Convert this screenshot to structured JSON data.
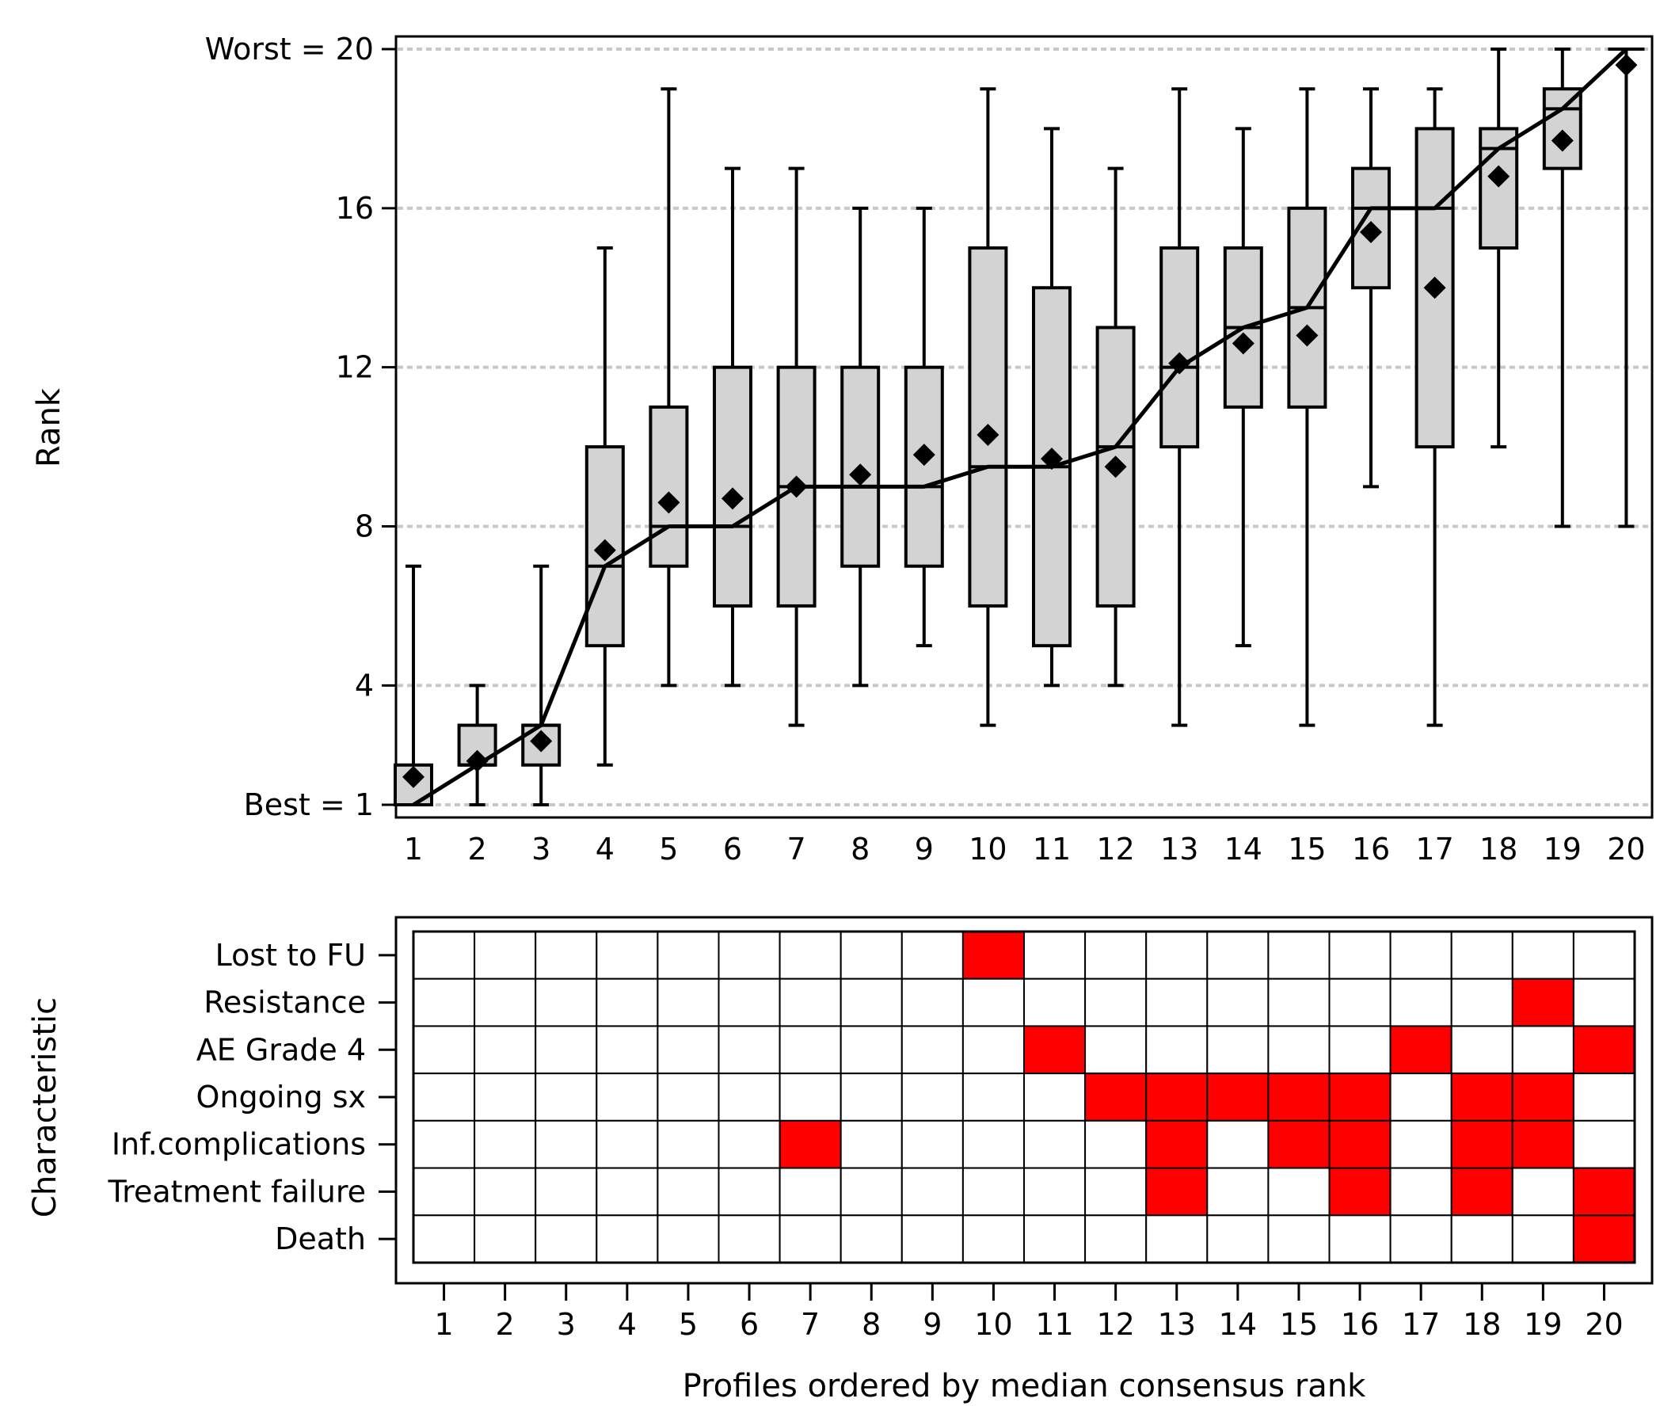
{
  "chart_data": [
    {
      "type": "box",
      "ylabel": "Rank",
      "ylim": [
        1,
        20
      ],
      "y_ticks": [
        {
          "value": 1,
          "label": "Best = 1"
        },
        {
          "value": 4,
          "label": "4"
        },
        {
          "value": 8,
          "label": "8"
        },
        {
          "value": 12,
          "label": "12"
        },
        {
          "value": 16,
          "label": "16"
        },
        {
          "value": 20,
          "label": "Worst = 20"
        }
      ],
      "categories": [
        "1",
        "2",
        "3",
        "4",
        "5",
        "6",
        "7",
        "8",
        "9",
        "10",
        "11",
        "12",
        "13",
        "14",
        "15",
        "16",
        "17",
        "18",
        "19",
        "20"
      ],
      "grid": "horizontal dashed",
      "box_fill": "#d3d3d3",
      "mean_marker": "diamond",
      "median_line": "connected",
      "boxes": [
        {
          "min": 1,
          "q1": 1,
          "median": 1,
          "q3": 2,
          "max": 7,
          "mean": 1.7
        },
        {
          "min": 1,
          "q1": 2,
          "median": 2,
          "q3": 3,
          "max": 4,
          "mean": 2.1
        },
        {
          "min": 1,
          "q1": 2,
          "median": 3,
          "q3": 3,
          "max": 7,
          "mean": 2.6
        },
        {
          "min": 2,
          "q1": 5,
          "median": 7,
          "q3": 10,
          "max": 15,
          "mean": 7.4
        },
        {
          "min": 4,
          "q1": 7,
          "median": 8,
          "q3": 11,
          "max": 19,
          "mean": 8.6
        },
        {
          "min": 4,
          "q1": 6,
          "median": 8,
          "q3": 12,
          "max": 17,
          "mean": 8.7
        },
        {
          "min": 3,
          "q1": 6,
          "median": 9,
          "q3": 12,
          "max": 17,
          "mean": 9.0
        },
        {
          "min": 4,
          "q1": 7,
          "median": 9,
          "q3": 12,
          "max": 16,
          "mean": 9.3
        },
        {
          "min": 5,
          "q1": 7,
          "median": 9,
          "q3": 12,
          "max": 16,
          "mean": 9.8
        },
        {
          "min": 3,
          "q1": 6,
          "median": 9.5,
          "q3": 15,
          "max": 19,
          "mean": 10.3
        },
        {
          "min": 4,
          "q1": 5,
          "median": 9.5,
          "q3": 14,
          "max": 18,
          "mean": 9.7
        },
        {
          "min": 4,
          "q1": 6,
          "median": 10,
          "q3": 13,
          "max": 17,
          "mean": 9.5
        },
        {
          "min": 3,
          "q1": 10,
          "median": 12,
          "q3": 15,
          "max": 19,
          "mean": 12.1
        },
        {
          "min": 5,
          "q1": 11,
          "median": 13,
          "q3": 15,
          "max": 18,
          "mean": 12.6
        },
        {
          "min": 3,
          "q1": 11,
          "median": 13.5,
          "q3": 16,
          "max": 19,
          "mean": 12.8
        },
        {
          "min": 9,
          "q1": 14,
          "median": 16,
          "q3": 17,
          "max": 19,
          "mean": 15.4
        },
        {
          "min": 3,
          "q1": 10,
          "median": 16,
          "q3": 18,
          "max": 19,
          "mean": 14.0
        },
        {
          "min": 10,
          "q1": 15,
          "median": 17.5,
          "q3": 18,
          "max": 20,
          "mean": 16.8
        },
        {
          "min": 8,
          "q1": 17,
          "median": 18.5,
          "q3": 19,
          "max": 20,
          "mean": 17.7
        },
        {
          "min": 8,
          "q1": 20,
          "median": 20,
          "q3": 20,
          "max": 20,
          "mean": 19.6
        }
      ]
    },
    {
      "type": "heatmap",
      "ylabel": "Characteristic",
      "xlabel": "Profiles ordered by median consensus rank",
      "rows": [
        "Lost to FU",
        "Resistance",
        "AE Grade 4",
        "Ongoing sx",
        "Inf.complications",
        "Treatment failure",
        "Death"
      ],
      "columns": [
        "1",
        "2",
        "3",
        "4",
        "5",
        "6",
        "7",
        "8",
        "9",
        "10",
        "11",
        "12",
        "13",
        "14",
        "15",
        "16",
        "17",
        "18",
        "19",
        "20"
      ],
      "active_color": "#ff0000",
      "inactive_color": "#ffffff",
      "cells": [
        [
          0,
          0,
          0,
          0,
          0,
          0,
          0,
          0,
          0,
          1,
          0,
          0,
          0,
          0,
          0,
          0,
          0,
          0,
          0,
          0
        ],
        [
          0,
          0,
          0,
          0,
          0,
          0,
          0,
          0,
          0,
          0,
          0,
          0,
          0,
          0,
          0,
          0,
          0,
          0,
          1,
          0
        ],
        [
          0,
          0,
          0,
          0,
          0,
          0,
          0,
          0,
          0,
          0,
          1,
          0,
          0,
          0,
          0,
          0,
          1,
          0,
          0,
          1
        ],
        [
          0,
          0,
          0,
          0,
          0,
          0,
          0,
          0,
          0,
          0,
          0,
          1,
          1,
          1,
          1,
          1,
          0,
          1,
          1,
          0
        ],
        [
          0,
          0,
          0,
          0,
          0,
          0,
          1,
          0,
          0,
          0,
          0,
          0,
          1,
          0,
          1,
          1,
          0,
          1,
          1,
          0
        ],
        [
          0,
          0,
          0,
          0,
          0,
          0,
          0,
          0,
          0,
          0,
          0,
          0,
          1,
          0,
          0,
          1,
          0,
          1,
          0,
          1
        ],
        [
          0,
          0,
          0,
          0,
          0,
          0,
          0,
          0,
          0,
          0,
          0,
          0,
          0,
          0,
          0,
          0,
          0,
          0,
          0,
          1
        ]
      ]
    }
  ]
}
